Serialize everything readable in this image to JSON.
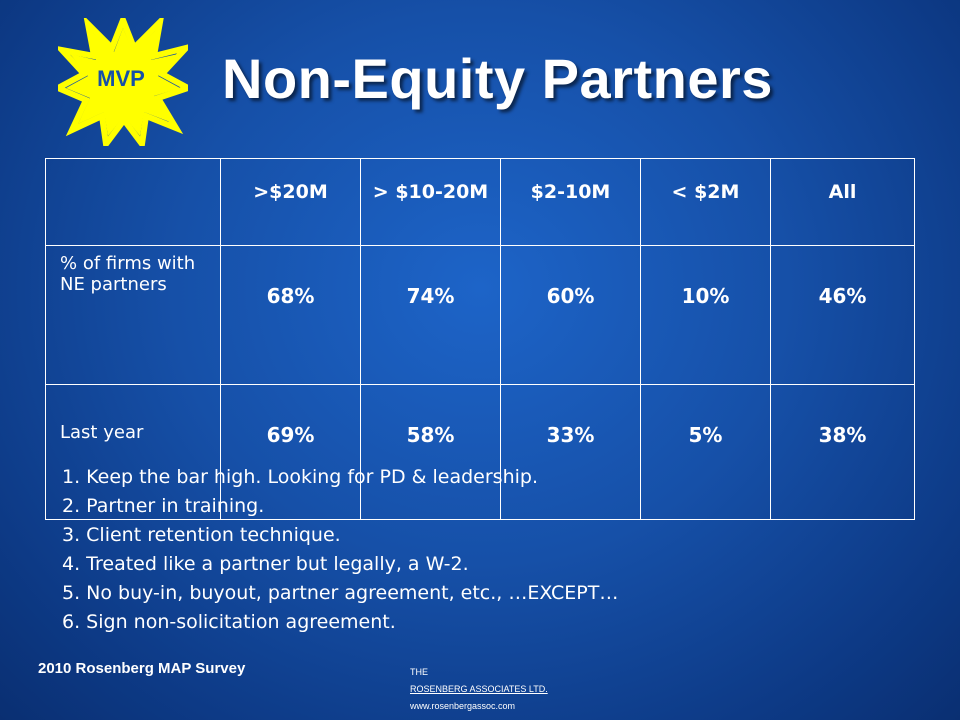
{
  "badge": {
    "label": "MVP",
    "fill": "#ffff00",
    "stroke": "#ffff33"
  },
  "title": "Non-Equity Partners",
  "table": {
    "columns": [
      ">$20M",
      "> $10-20M",
      "$2-10M",
      "< $2M",
      "All"
    ],
    "rows": [
      {
        "label": "% of firms with NE partners",
        "values": [
          "68%",
          "74%",
          "60%",
          "10%",
          "46%"
        ]
      },
      {
        "label": "Last year",
        "values": [
          "69%",
          "58%",
          "33%",
          "5%",
          "38%"
        ]
      }
    ]
  },
  "notes": [
    "1.  Keep the bar high.  Looking for PD & leadership.",
    "2.   Partner in training.",
    "3.   Client retention technique.",
    "4.   Treated like a partner but legally, a W-2.",
    "5.   No buy-in, buyout, partner agreement, etc., …EXCEPT…",
    "6.   Sign non-solicitation agreement."
  ],
  "footer": {
    "survey": "2010 Rosenberg MAP Survey",
    "the": "THE",
    "company": "ROSENBERG ASSOCIATES  LTD.",
    "website": "www.rosenbergassoc.com"
  },
  "colors": {
    "background": "#1650a8",
    "text": "#ffffff",
    "badge_text": "#1650a8"
  }
}
